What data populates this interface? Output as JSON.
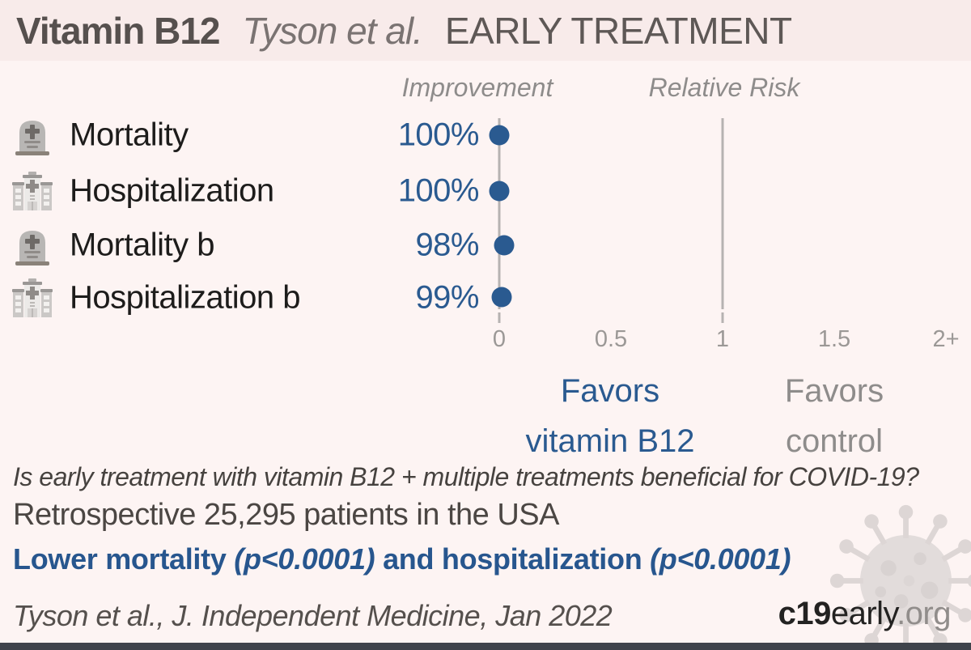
{
  "header": {
    "treatment": "Vitamin B12",
    "authors": "Tyson et al.",
    "stage": "EARLY TREATMENT"
  },
  "column_headers": {
    "improvement": "Improvement",
    "relative_risk": "Relative Risk"
  },
  "outcomes": [
    {
      "icon": "tombstone-icon",
      "label": "Mortality",
      "improvement": "100%"
    },
    {
      "icon": "hospital-icon",
      "label": "Hospitalization",
      "improvement": "100%"
    },
    {
      "icon": "tombstone-icon",
      "label": "Mortality b",
      "improvement": "98%"
    },
    {
      "icon": "hospital-icon",
      "label": "Hospitalization b",
      "improvement": "99%"
    }
  ],
  "favors": {
    "left": {
      "line1": "Favors",
      "line2": "vitamin B12"
    },
    "right": {
      "line1": "Favors",
      "line2": "control"
    }
  },
  "question": "Is early treatment with vitamin B12 + multiple treatments beneficial for COVID-19?",
  "study_summary": "Retrospective 25,295 patients in the USA",
  "result": {
    "part1": "Lower mortality ",
    "p1": "(p<0.0001)",
    "part2": " and hospitalization ",
    "p2": "(p<0.0001)"
  },
  "citation": "Tyson et al., J. Independent Medicine, Jan 2022",
  "logo": {
    "bold": "c19",
    "regular": "early",
    "suffix": ".org"
  },
  "colors": {
    "accent_blue": "#2a5a90",
    "result_blue": "#27568e",
    "header_bg": "#f8ebea",
    "body_bg": "#fdf4f3",
    "bottom_bar": "#3f434b",
    "gray_text": "#8e8c8b",
    "axis_line": "#b6b2b1"
  },
  "chart_data": {
    "type": "scatter",
    "subtype": "forest-plot",
    "title": "Vitamin B12 — Tyson et al. — EARLY TREATMENT",
    "categories": [
      "Mortality",
      "Hospitalization",
      "Mortality b",
      "Hospitalization b"
    ],
    "series": [
      {
        "name": "Improvement",
        "unit": "%",
        "values": [
          100,
          100,
          98,
          99
        ]
      },
      {
        "name": "Relative Risk",
        "values": [
          0.0,
          0.0,
          0.02,
          0.01
        ]
      }
    ],
    "xlabel": "Relative Risk",
    "x_ticks": [
      "0",
      "0.5",
      "1",
      "1.5",
      "2+"
    ],
    "x_tick_values": [
      0,
      0.5,
      1,
      1.5,
      2
    ],
    "xlim": [
      0,
      2.1
    ],
    "reference_line_x": 1,
    "grid": false,
    "legend_position": "none",
    "annotations": [
      "Favors vitamin B12",
      "Favors control"
    ]
  }
}
